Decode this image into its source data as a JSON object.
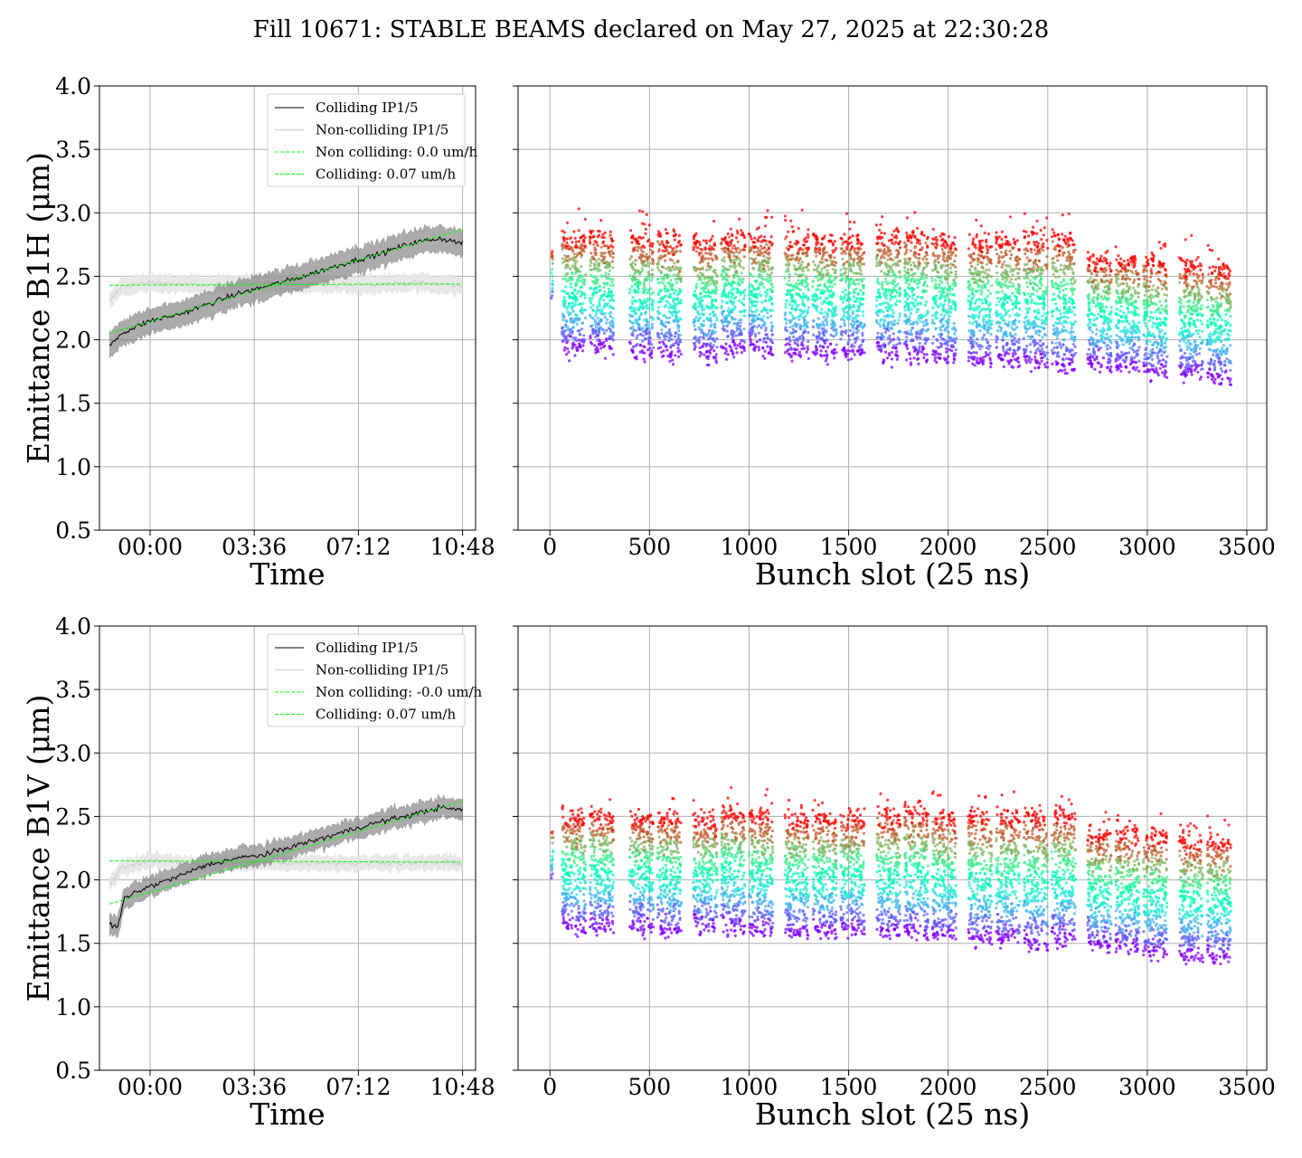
{
  "title": "Fill 10671: STABLE BEAMS declared on May 27, 2025 at 22:30:28",
  "colors": {
    "colliding": "#000000",
    "colliding_band": "#7f7f7f",
    "noncolliding": "#cccccc",
    "noncolliding_band": "#e6e6e6",
    "fit": "#00ff00",
    "grid": "#b0b0b0"
  },
  "chart_data": [
    {
      "type": "line",
      "ylabel": "Emittance B1H (μm)",
      "xlabel": "Time",
      "ylim": [
        0.5,
        4.0
      ],
      "yticks": [
        "0.5",
        "1.0",
        "1.5",
        "2.0",
        "2.5",
        "3.0",
        "3.5",
        "4.0"
      ],
      "xlim_hours": [
        -1.75,
        11.25
      ],
      "xticks": [
        "00:00",
        "03:36",
        "07:12",
        "10:48"
      ],
      "xtick_hours": [
        0,
        3.6,
        7.2,
        10.8
      ],
      "grid": true,
      "legend_position": "top-right",
      "legend": [
        "Colliding IP1/5",
        "Non-colliding IP1/5",
        "Non colliding: 0.0 um/h",
        "Colliding: 0.07 um/h"
      ],
      "series": [
        {
          "name": "Colliding IP1/5",
          "x_hours": [
            -1.4,
            -1.0,
            0.0,
            1.0,
            2.0,
            3.0,
            4.0,
            5.0,
            6.0,
            7.0,
            8.0,
            9.0,
            10.0,
            10.8
          ],
          "y": [
            1.95,
            2.05,
            2.15,
            2.2,
            2.28,
            2.36,
            2.42,
            2.48,
            2.55,
            2.62,
            2.68,
            2.76,
            2.8,
            2.76
          ],
          "band": 0.1
        },
        {
          "name": "Non-colliding IP1/5",
          "x_hours": [
            -1.4,
            -1.0,
            0.0,
            1.0,
            2.0,
            3.0,
            4.0,
            5.0,
            6.0,
            7.0,
            8.0,
            9.0,
            10.0,
            10.8
          ],
          "y": [
            2.3,
            2.42,
            2.45,
            2.44,
            2.43,
            2.44,
            2.45,
            2.44,
            2.43,
            2.44,
            2.44,
            2.45,
            2.44,
            2.42
          ],
          "band": 0.07
        },
        {
          "name": "Non colliding: 0.0 um/h",
          "x_hours": [
            -1.4,
            10.8
          ],
          "y": [
            2.43,
            2.44
          ]
        },
        {
          "name": "Colliding: 0.07 um/h",
          "x_hours": [
            -1.4,
            10.8
          ],
          "y": [
            2.05,
            2.87
          ]
        }
      ]
    },
    {
      "type": "scatter",
      "xlabel": "Bunch slot (25 ns)",
      "xlim": [
        -160,
        3600
      ],
      "ylim": [
        0.5,
        4.0
      ],
      "xticks": [
        "0",
        "500",
        "1000",
        "1500",
        "2000",
        "2500",
        "3000",
        "3500"
      ],
      "xtick_values": [
        0,
        500,
        1000,
        1500,
        2000,
        2500,
        3000,
        3500
      ],
      "grid": true,
      "colormap": "rainbow",
      "trains": [
        {
          "start": 60,
          "end": 180,
          "low": 1.95,
          "high": 2.8
        },
        {
          "start": 200,
          "end": 320,
          "low": 1.95,
          "high": 2.8
        },
        {
          "start": 400,
          "end": 520,
          "low": 1.92,
          "high": 2.78
        },
        {
          "start": 540,
          "end": 660,
          "low": 1.92,
          "high": 2.78
        },
        {
          "start": 720,
          "end": 840,
          "low": 1.9,
          "high": 2.75
        },
        {
          "start": 860,
          "end": 980,
          "low": 1.95,
          "high": 2.8
        },
        {
          "start": 1000,
          "end": 1120,
          "low": 1.95,
          "high": 2.8
        },
        {
          "start": 1180,
          "end": 1300,
          "low": 1.92,
          "high": 2.78
        },
        {
          "start": 1320,
          "end": 1440,
          "low": 1.92,
          "high": 2.77
        },
        {
          "start": 1460,
          "end": 1580,
          "low": 1.92,
          "high": 2.78
        },
        {
          "start": 1640,
          "end": 1760,
          "low": 1.9,
          "high": 2.8
        },
        {
          "start": 1780,
          "end": 1900,
          "low": 1.9,
          "high": 2.8
        },
        {
          "start": 1920,
          "end": 2040,
          "low": 1.88,
          "high": 2.78
        },
        {
          "start": 2100,
          "end": 2220,
          "low": 1.85,
          "high": 2.76
        },
        {
          "start": 2240,
          "end": 2360,
          "low": 1.85,
          "high": 2.77
        },
        {
          "start": 2380,
          "end": 2500,
          "low": 1.83,
          "high": 2.78
        },
        {
          "start": 2520,
          "end": 2640,
          "low": 1.8,
          "high": 2.8
        },
        {
          "start": 2700,
          "end": 2820,
          "low": 1.82,
          "high": 2.62
        },
        {
          "start": 2840,
          "end": 2960,
          "low": 1.8,
          "high": 2.62
        },
        {
          "start": 2980,
          "end": 3100,
          "low": 1.76,
          "high": 2.6
        },
        {
          "start": 3160,
          "end": 3280,
          "low": 1.75,
          "high": 2.58
        },
        {
          "start": 3300,
          "end": 3420,
          "low": 1.72,
          "high": 2.55
        }
      ]
    },
    {
      "type": "line",
      "ylabel": "Emittance B1V (μm)",
      "xlabel": "Time",
      "ylim": [
        0.5,
        4.0
      ],
      "yticks": [
        "0.5",
        "1.0",
        "1.5",
        "2.0",
        "2.5",
        "3.0",
        "3.5",
        "4.0"
      ],
      "xlim_hours": [
        -1.75,
        11.25
      ],
      "xticks": [
        "00:00",
        "03:36",
        "07:12",
        "10:48"
      ],
      "xtick_hours": [
        0,
        3.6,
        7.2,
        10.8
      ],
      "grid": true,
      "legend_position": "top-right",
      "legend": [
        "Colliding IP1/5",
        "Non-colliding IP1/5",
        "Non colliding: -0.0 um/h",
        "Colliding: 0.07 um/h"
      ],
      "series": [
        {
          "name": "Colliding IP1/5",
          "x_hours": [
            -1.4,
            -1.1,
            -0.9,
            -0.5,
            0.0,
            1.0,
            2.0,
            3.0,
            4.0,
            5.0,
            6.0,
            7.0,
            8.0,
            9.0,
            10.0,
            10.8
          ],
          "y": [
            1.65,
            1.63,
            1.85,
            1.9,
            1.95,
            2.03,
            2.12,
            2.17,
            2.2,
            2.27,
            2.33,
            2.4,
            2.46,
            2.51,
            2.57,
            2.55
          ],
          "band": 0.08
        },
        {
          "name": "Non-colliding IP1/5",
          "x_hours": [
            -1.4,
            -1.0,
            0.0,
            1.0,
            2.0,
            3.0,
            4.0,
            5.0,
            6.0,
            7.0,
            8.0,
            9.0,
            10.0,
            10.8
          ],
          "y": [
            1.95,
            2.1,
            2.15,
            2.14,
            2.12,
            2.13,
            2.14,
            2.13,
            2.14,
            2.13,
            2.14,
            2.13,
            2.14,
            2.13
          ],
          "band": 0.06
        },
        {
          "name": "Non colliding: -0.0 um/h",
          "x_hours": [
            -1.4,
            10.8
          ],
          "y": [
            2.15,
            2.14
          ]
        },
        {
          "name": "Colliding: 0.07 um/h",
          "x_hours": [
            -1.4,
            10.8
          ],
          "y": [
            1.81,
            2.62
          ]
        }
      ]
    },
    {
      "type": "scatter",
      "xlabel": "Bunch slot (25 ns)",
      "xlim": [
        -160,
        3600
      ],
      "ylim": [
        0.5,
        4.0
      ],
      "xticks": [
        "0",
        "500",
        "1000",
        "1500",
        "2000",
        "2500",
        "3000",
        "3500"
      ],
      "xtick_values": [
        0,
        500,
        1000,
        1500,
        2000,
        2500,
        3000,
        3500
      ],
      "grid": true,
      "colormap": "rainbow",
      "trains": [
        {
          "start": 60,
          "end": 180,
          "low": 1.65,
          "high": 2.5
        },
        {
          "start": 200,
          "end": 320,
          "low": 1.65,
          "high": 2.5
        },
        {
          "start": 400,
          "end": 520,
          "low": 1.65,
          "high": 2.48
        },
        {
          "start": 540,
          "end": 660,
          "low": 1.62,
          "high": 2.48
        },
        {
          "start": 720,
          "end": 840,
          "low": 1.65,
          "high": 2.45
        },
        {
          "start": 860,
          "end": 980,
          "low": 1.65,
          "high": 2.52
        },
        {
          "start": 1000,
          "end": 1120,
          "low": 1.62,
          "high": 2.5
        },
        {
          "start": 1180,
          "end": 1300,
          "low": 1.6,
          "high": 2.48
        },
        {
          "start": 1320,
          "end": 1440,
          "low": 1.6,
          "high": 2.48
        },
        {
          "start": 1460,
          "end": 1580,
          "low": 1.62,
          "high": 2.48
        },
        {
          "start": 1640,
          "end": 1760,
          "low": 1.6,
          "high": 2.5
        },
        {
          "start": 1780,
          "end": 1900,
          "low": 1.6,
          "high": 2.52
        },
        {
          "start": 1920,
          "end": 2040,
          "low": 1.58,
          "high": 2.48
        },
        {
          "start": 2100,
          "end": 2220,
          "low": 1.55,
          "high": 2.48
        },
        {
          "start": 2240,
          "end": 2360,
          "low": 1.55,
          "high": 2.48
        },
        {
          "start": 2380,
          "end": 2500,
          "low": 1.52,
          "high": 2.48
        },
        {
          "start": 2520,
          "end": 2640,
          "low": 1.55,
          "high": 2.5
        },
        {
          "start": 2700,
          "end": 2820,
          "low": 1.5,
          "high": 2.35
        },
        {
          "start": 2840,
          "end": 2960,
          "low": 1.48,
          "high": 2.35
        },
        {
          "start": 2980,
          "end": 3100,
          "low": 1.45,
          "high": 2.33
        },
        {
          "start": 3160,
          "end": 3280,
          "low": 1.42,
          "high": 2.3
        },
        {
          "start": 3300,
          "end": 3420,
          "low": 1.42,
          "high": 2.28
        }
      ]
    }
  ]
}
